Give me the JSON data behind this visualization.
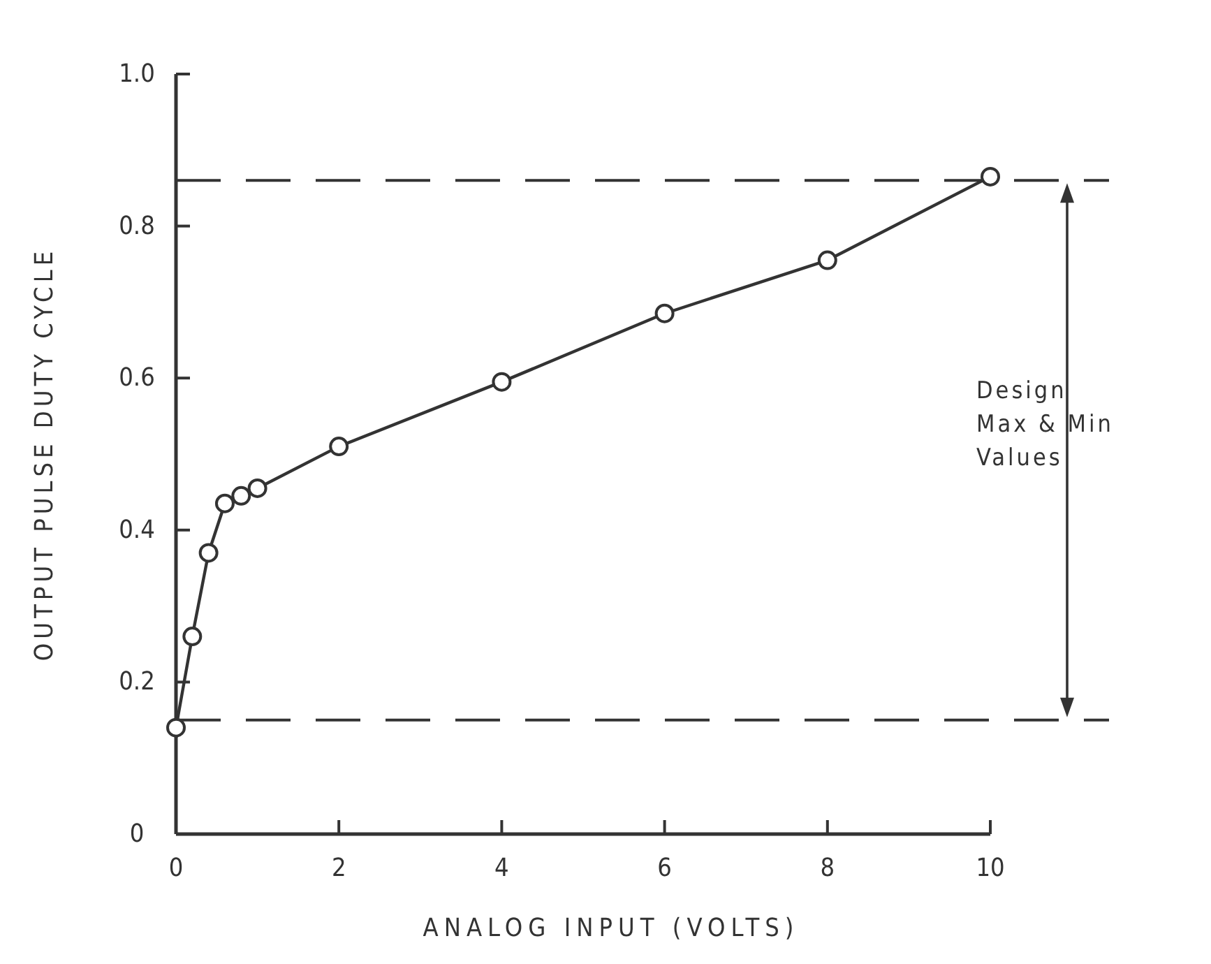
{
  "chart_data": {
    "type": "line",
    "xlabel": "ANALOG INPUT (VOLTS)",
    "ylabel": "OUTPUT PULSE DUTY CYCLE",
    "x": [
      0,
      0.2,
      0.4,
      0.6,
      0.8,
      1.0,
      2,
      4,
      6,
      8,
      10
    ],
    "series": [
      {
        "color": "#333333",
        "values": [
          0.14,
          0.26,
          0.37,
          0.435,
          0.445,
          0.455,
          0.51,
          0.595,
          0.685,
          0.755,
          0.865
        ],
        "marker": "circle",
        "line_style": "solid"
      }
    ],
    "xlim": [
      0,
      10
    ],
    "xticks": [
      0,
      2,
      4,
      6,
      8,
      10
    ],
    "ylim": [
      0,
      1.0
    ],
    "yticks": [
      0,
      {
        "value": 0.2,
        "label": "0.2"
      },
      {
        "value": 0.4,
        "label": "0.4"
      },
      {
        "value": 0.6,
        "label": "0.6"
      },
      {
        "value": 0.8,
        "label": "0.8"
      },
      {
        "value": 1.0,
        "label": "1.0"
      }
    ],
    "grid": false,
    "ref_lines": [
      {
        "axis": "y",
        "value": 0.15,
        "color": "#333333",
        "line_style": "dashed"
      },
      {
        "axis": "y",
        "value": 0.86,
        "color": "#333333",
        "line_style": "dashed"
      }
    ],
    "annotations": [
      "Design\nMax & Min\nValues"
    ]
  }
}
